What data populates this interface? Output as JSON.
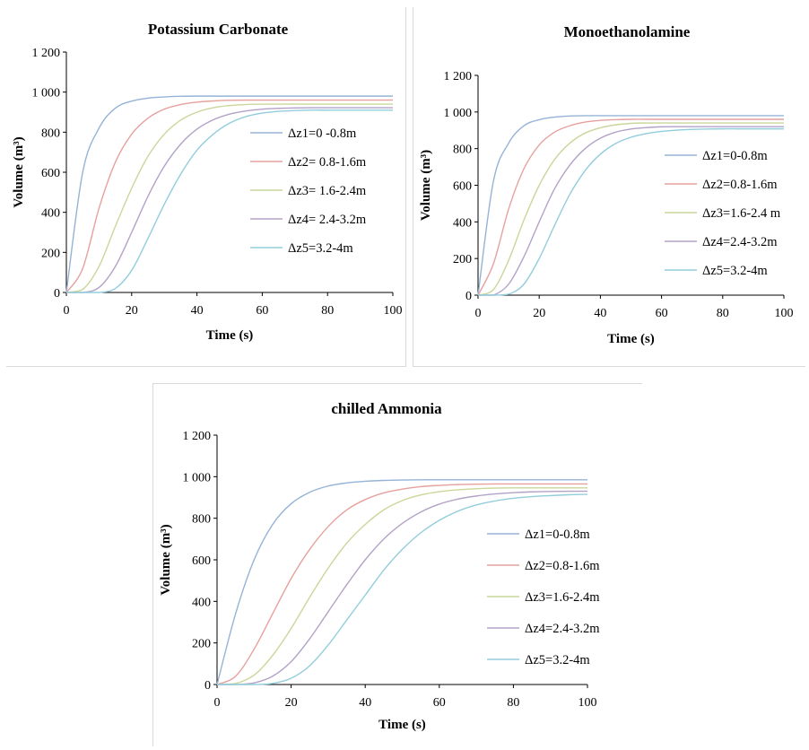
{
  "chart_data": [
    {
      "type": "line",
      "title": "Potassium Carbonate",
      "xlabel": "Time (s)",
      "ylabel": "Volume (m³)",
      "xlim": [
        0,
        100
      ],
      "ylim": [
        0,
        1200
      ],
      "xticks": [
        "0",
        "20",
        "40",
        "60",
        "80",
        "100"
      ],
      "yticks": [
        "0",
        "200",
        "400",
        "600",
        "800",
        "1 000",
        "1 200"
      ],
      "grid": false,
      "legend_position": "right",
      "x": [
        0,
        5,
        10,
        15,
        20,
        25,
        30,
        35,
        40,
        45,
        50,
        55,
        60,
        65,
        70,
        75,
        80,
        85,
        90,
        95,
        100
      ],
      "series": [
        {
          "name": "Δz1=0 -0.8m",
          "color": "#95b3d7",
          "values": [
            0,
            600,
            820,
            920,
            955,
            970,
            976,
            979,
            980,
            980,
            980,
            980,
            980,
            980,
            980,
            980,
            980,
            980,
            980,
            980,
            980
          ]
        },
        {
          "name": "Δz2= 0.8-1.6m",
          "color": "#e6a19e",
          "values": [
            0,
            120,
            420,
            650,
            790,
            870,
            915,
            938,
            950,
            956,
            959,
            960,
            960,
            960,
            960,
            960,
            960,
            960,
            960,
            960,
            960
          ]
        },
        {
          "name": "Δz3= 1.6-2.4m",
          "color": "#c9d79a",
          "values": [
            0,
            15,
            130,
            330,
            520,
            680,
            790,
            860,
            900,
            922,
            933,
            938,
            940,
            940,
            940,
            940,
            940,
            940,
            940,
            940,
            940
          ]
        },
        {
          "name": "Δz4= 2.4-3.2m",
          "color": "#b3a2c7",
          "values": [
            0,
            0,
            25,
            130,
            300,
            480,
            630,
            740,
            815,
            862,
            890,
            906,
            915,
            919,
            921,
            922,
            922,
            922,
            922,
            922,
            922
          ]
        },
        {
          "name": "Δz5=3.2-4m",
          "color": "#92cddc",
          "values": [
            0,
            0,
            0,
            20,
            110,
            270,
            440,
            590,
            710,
            790,
            845,
            878,
            895,
            904,
            908,
            910,
            910,
            910,
            910,
            910,
            910
          ]
        }
      ]
    },
    {
      "type": "line",
      "title": "Monoethanolamine",
      "xlabel": "Time (s)",
      "ylabel": "Volume (m³)",
      "xlim": [
        0,
        100
      ],
      "ylim": [
        0,
        1200
      ],
      "xticks": [
        "0",
        "20",
        "40",
        "60",
        "80",
        "100"
      ],
      "yticks": [
        "0",
        "200",
        "400",
        "600",
        "800",
        "1 000",
        "1 200"
      ],
      "grid": false,
      "legend_position": "right",
      "x": [
        0,
        5,
        10,
        15,
        20,
        25,
        30,
        35,
        40,
        45,
        50,
        55,
        60,
        65,
        70,
        75,
        80,
        85,
        90,
        95,
        100
      ],
      "series": [
        {
          "name": "Δz1=0-0.8m",
          "color": "#95b3d7",
          "values": [
            0,
            620,
            830,
            925,
            958,
            972,
            978,
            980,
            980,
            980,
            980,
            980,
            980,
            980,
            980,
            980,
            980,
            980,
            980,
            980,
            980
          ]
        },
        {
          "name": "Δz2=0.8-1.6m",
          "color": "#e6a19e",
          "values": [
            0,
            170,
            470,
            690,
            820,
            890,
            925,
            945,
            954,
            958,
            960,
            960,
            960,
            960,
            960,
            960,
            960,
            960,
            960,
            960,
            960
          ]
        },
        {
          "name": "Δz3=1.6-2.4 m",
          "color": "#c9d79a",
          "values": [
            0,
            30,
            190,
            410,
            600,
            740,
            830,
            885,
            914,
            930,
            938,
            940,
            940,
            940,
            940,
            940,
            940,
            940,
            940,
            940,
            940
          ]
        },
        {
          "name": "Δz4=2.4-3.2m",
          "color": "#b3a2c7",
          "values": [
            0,
            0,
            60,
            210,
            400,
            580,
            710,
            800,
            857,
            890,
            907,
            915,
            919,
            920,
            920,
            920,
            920,
            920,
            920,
            920,
            920
          ]
        },
        {
          "name": "Δz5=3.2-4m",
          "color": "#92cddc",
          "values": [
            0,
            0,
            5,
            60,
            200,
            380,
            550,
            680,
            770,
            828,
            862,
            882,
            894,
            901,
            905,
            907,
            908,
            908,
            908,
            908,
            908
          ]
        }
      ]
    },
    {
      "type": "line",
      "title": "chilled Ammonia",
      "xlabel": "Time (s)",
      "ylabel": "Volume (m³)",
      "xlim": [
        0,
        100
      ],
      "ylim": [
        0,
        1200
      ],
      "xticks": [
        "0",
        "20",
        "40",
        "60",
        "80",
        "100"
      ],
      "yticks": [
        "0",
        "200",
        "400",
        "600",
        "800",
        "1 000",
        "1 200"
      ],
      "grid": false,
      "legend_position": "right",
      "x": [
        0,
        5,
        10,
        15,
        20,
        25,
        30,
        35,
        40,
        45,
        50,
        55,
        60,
        65,
        70,
        75,
        80,
        85,
        90,
        95,
        100
      ],
      "series": [
        {
          "name": "Δz1=0-0.8m",
          "color": "#95b3d7",
          "values": [
            0,
            340,
            600,
            770,
            870,
            925,
            955,
            970,
            978,
            982,
            984,
            985,
            985,
            985,
            985,
            985,
            985,
            985,
            985,
            985,
            985
          ]
        },
        {
          "name": "Δz2=0.8-1.6m",
          "color": "#e6a19e",
          "values": [
            0,
            40,
            170,
            340,
            510,
            650,
            760,
            840,
            890,
            922,
            940,
            952,
            958,
            962,
            964,
            965,
            965,
            965,
            965,
            965,
            965
          ]
        },
        {
          "name": "Δz3=1.6-2.4m",
          "color": "#c9d79a",
          "values": [
            0,
            5,
            45,
            140,
            270,
            420,
            560,
            680,
            770,
            840,
            885,
            912,
            928,
            937,
            942,
            945,
            946,
            946,
            946,
            946,
            946
          ]
        },
        {
          "name": "Δz4=2.4-3.2m",
          "color": "#b3a2c7",
          "values": [
            0,
            0,
            8,
            40,
            110,
            220,
            350,
            480,
            600,
            700,
            775,
            830,
            868,
            892,
            907,
            917,
            923,
            927,
            929,
            930,
            930
          ]
        },
        {
          "name": "Δz5=3.2-4m",
          "color": "#92cddc",
          "values": [
            0,
            0,
            0,
            5,
            30,
            90,
            190,
            310,
            430,
            550,
            650,
            730,
            790,
            834,
            864,
            883,
            896,
            904,
            909,
            913,
            915
          ]
        }
      ]
    }
  ]
}
